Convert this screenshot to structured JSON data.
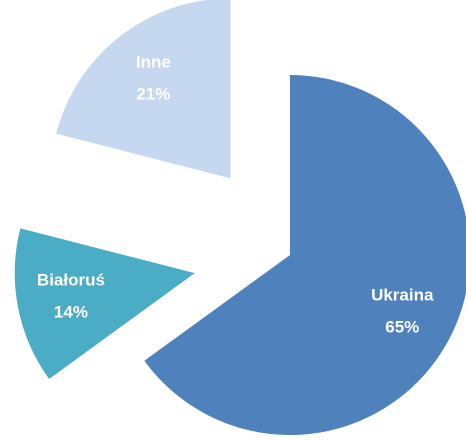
{
  "chart_data": {
    "type": "pie",
    "categories": [
      "Ukraina",
      "Białoruś",
      "Inne"
    ],
    "values": [
      65,
      14,
      21
    ],
    "value_labels": [
      "65%",
      "14%",
      "21%"
    ],
    "colors": [
      "#4f81bd",
      "#4bacc6",
      "#c6d8f0"
    ]
  }
}
